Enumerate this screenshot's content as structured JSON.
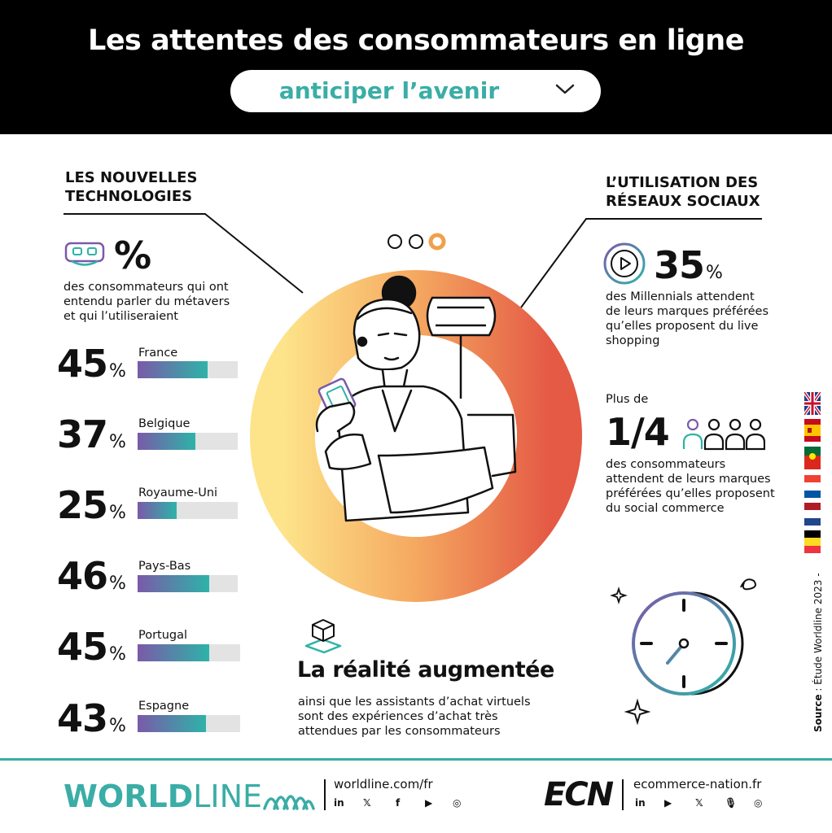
{
  "header": {
    "title": "Les attentes des consommateurs en ligne",
    "dropdown_value": "anticiper l’avenir"
  },
  "left_section": {
    "title_line1": "LES NOUVELLES",
    "title_line2": "TECHNOLOGIES",
    "headline_icon": "vr-headset-icon",
    "headline_value": "%",
    "desc_line1": "des consommateurs qui ont",
    "desc_line2": "entendu parler du métavers",
    "desc_line3": "et qui l’utiliseraient",
    "countries": [
      {
        "name": "France",
        "value": "45",
        "unit": "%",
        "fraction": 0.45
      },
      {
        "name": "Belgique",
        "value": "37",
        "unit": "%",
        "fraction": 0.37
      },
      {
        "name": "Royaume-Uni",
        "value": "25",
        "unit": "%",
        "fraction": 0.25
      },
      {
        "name": "Pays-Bas",
        "value": "46",
        "unit": "%",
        "fraction": 0.46
      },
      {
        "name": "Portugal",
        "value": "45",
        "unit": "%",
        "fraction": 0.45
      },
      {
        "name": "Espagne",
        "value": "43",
        "unit": "%",
        "fraction": 0.43
      }
    ]
  },
  "right_section": {
    "title_line1": "L’UTILISATION DES",
    "title_line2": "RÉSEAUX SOCIAUX",
    "stat1_icon": "play-icon",
    "stat1_value": "35",
    "stat1_unit": "%",
    "stat1_line1": "des Millennials attendent",
    "stat1_line2": "de leurs marques préférées",
    "stat1_line3": "qu’elles proposent du live",
    "stat1_line4": "shopping",
    "stat2_prefix": "Plus de",
    "stat2_value": "1/4",
    "stat2_icon": "people-icon",
    "stat2_line1": "des consommateurs",
    "stat2_line2": "attendent de leurs marques",
    "stat2_line3": "préférées qu’elles proposent",
    "stat2_line4": "du social commerce"
  },
  "center": {
    "carousel_dots": 3,
    "active_dot": 3,
    "ar_icon": "cube-icon",
    "ar_title": "La réalité augmentée",
    "ar_line1": "ainsi que les assistants d’achat virtuels",
    "ar_line2": "sont des expériences d’achat très",
    "ar_line3": "attendues par les consommateurs"
  },
  "side": {
    "source_bold": "Source",
    "source_text": " : Étude Worldline 2023  -",
    "flags": [
      "uk-flag-icon",
      "spain-flag-icon",
      "portugal-flag-icon",
      "france-flag-icon",
      "netherlands-flag-icon",
      "belgium-flag-icon"
    ]
  },
  "footer": {
    "worldline_bold": "WORLD",
    "worldline_thin": "LINE",
    "worldline_url": "worldline.com/fr",
    "worldline_socials": [
      "in",
      "𝕏",
      "f",
      "▶",
      "◎"
    ],
    "ecn_logo": "ECN",
    "ecn_url": "ecommerce-nation.fr",
    "ecn_socials": [
      "in",
      "▶",
      "𝕏",
      "🎙",
      "◎"
    ]
  },
  "colors": {
    "accent": "#3aada6",
    "bar_start": "#7a5aa8",
    "bar_end": "#2eb3a8",
    "ring_start": "#fde48a",
    "ring_end": "#e45a45"
  }
}
